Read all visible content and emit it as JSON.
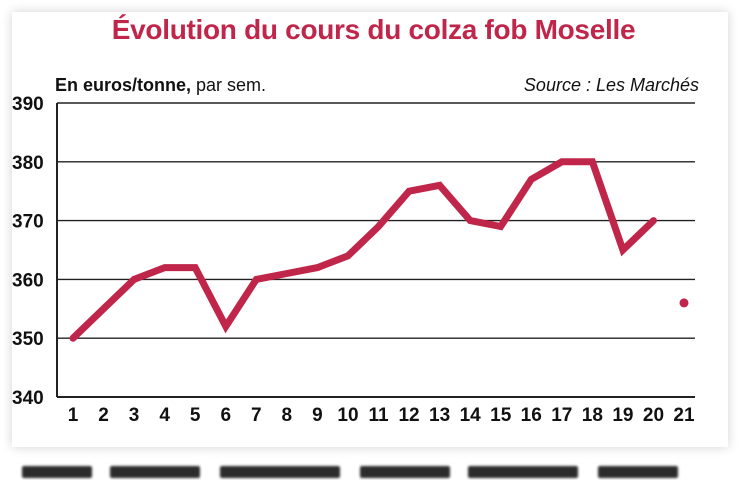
{
  "chart_data": {
    "type": "line",
    "title": "Évolution du cours du colza fob Moselle",
    "unit_bold": "En euros/tonne,",
    "unit_rest": " par sem.",
    "source": "Source : Les Marchés",
    "categories": [
      "1",
      "2",
      "3",
      "4",
      "5",
      "6",
      "7",
      "8",
      "9",
      "10",
      "11",
      "12",
      "13",
      "14",
      "15",
      "16",
      "17",
      "18",
      "19",
      "20",
      "21"
    ],
    "series": [
      {
        "values": [
          350,
          355,
          360,
          362,
          362,
          352,
          360,
          361,
          362,
          364,
          369,
          375,
          376,
          370,
          369,
          377,
          380,
          380,
          365,
          370,
          null
        ]
      }
    ],
    "point_marker": {
      "x": "21",
      "y": 356
    },
    "ylim": [
      340,
      390
    ],
    "yticks": [
      340,
      350,
      360,
      370,
      380,
      390
    ],
    "grid": true,
    "colors": {
      "line": "#c0264a",
      "title": "#c0264a",
      "grid": "#222222",
      "text": "#111111"
    }
  }
}
